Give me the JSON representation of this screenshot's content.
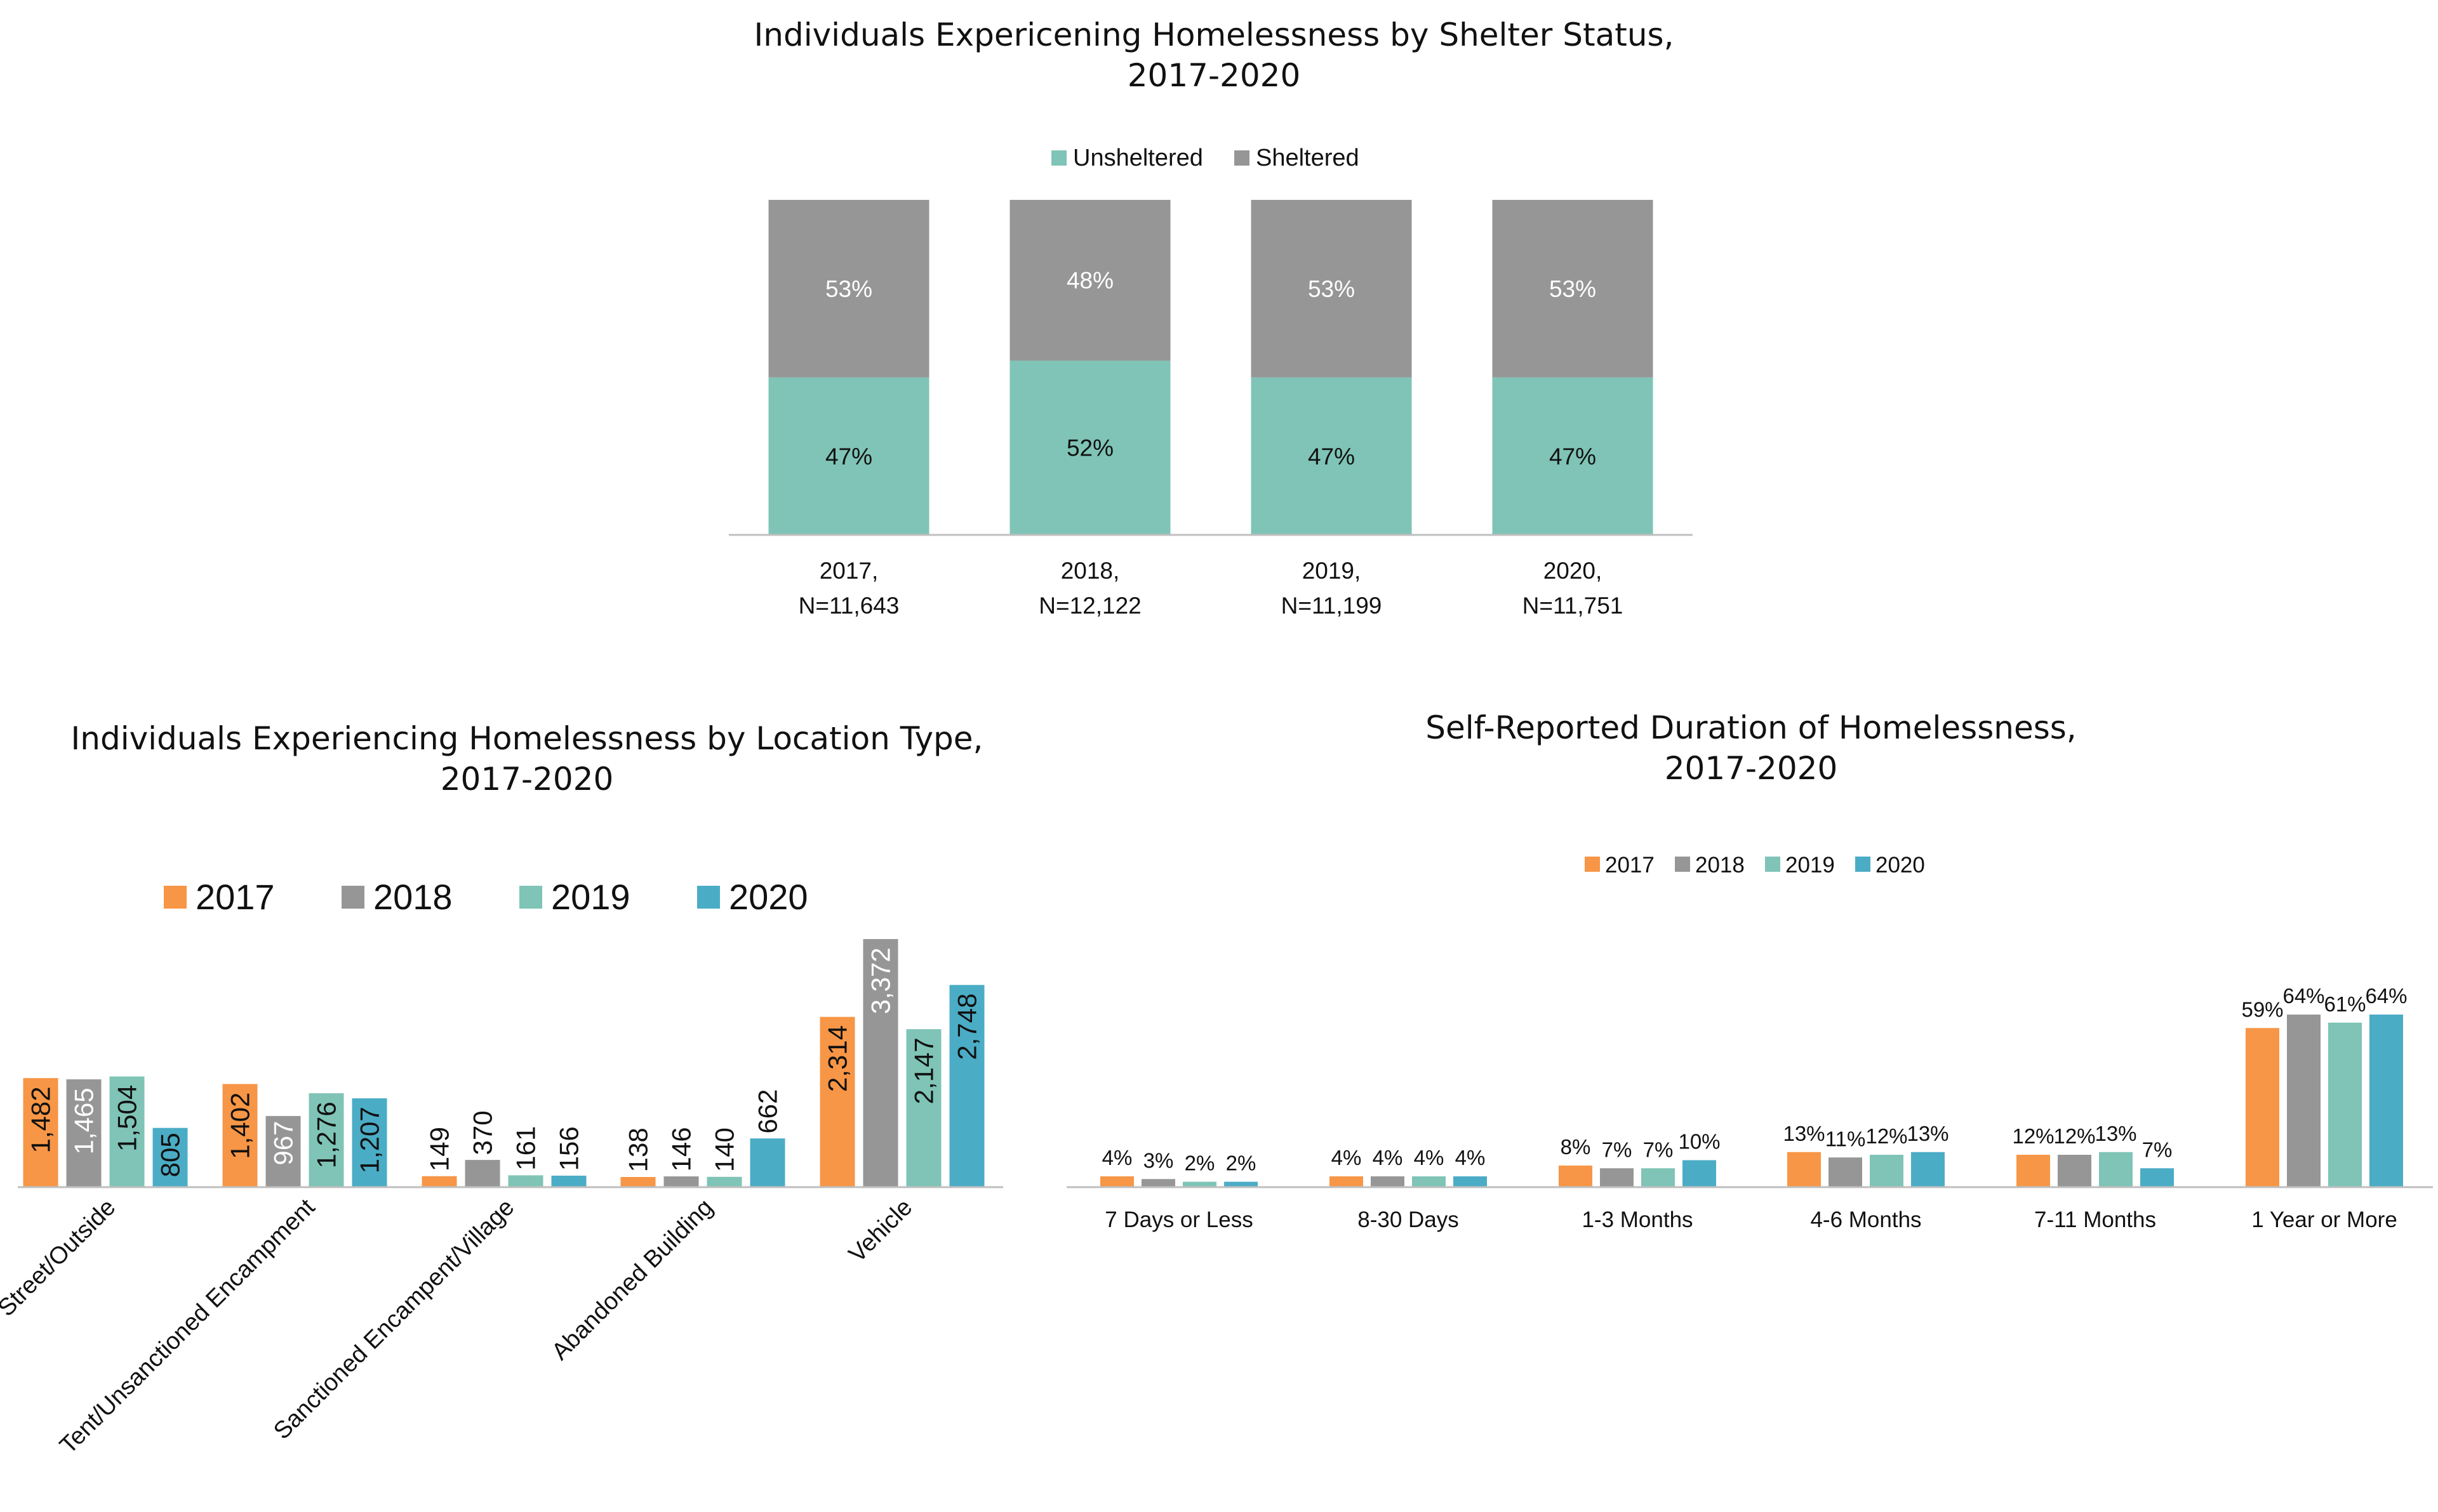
{
  "colors": {
    "c2017": "#F79646",
    "c2018": "#969696",
    "c2019": "#7FC4B6",
    "c2020": "#4BACC6",
    "unsheltered": "#7FC4B6",
    "sheltered": "#969696",
    "axis": "#BFBFBF"
  },
  "chart_data": [
    {
      "id": "shelter",
      "type": "bar",
      "stacked": true,
      "percent_stacked": true,
      "title_line1": "Individuals Expericening Homelessness by Shelter Status,",
      "title_line2": "2017-2020",
      "categories": [
        [
          "2017,",
          "N=11,643"
        ],
        [
          "2018,",
          "N=12,122"
        ],
        [
          "2019,",
          "N=11,199"
        ],
        [
          "2020,",
          "N=11,751"
        ]
      ],
      "series": [
        {
          "name": "Unsheltered",
          "values": [
            47,
            52,
            47,
            47
          ],
          "labels": [
            "47%",
            "52%",
            "47%",
            "47%"
          ]
        },
        {
          "name": "Sheltered",
          "values": [
            53,
            48,
            53,
            53
          ],
          "labels": [
            "53%",
            "48%",
            "53%",
            "53%"
          ]
        }
      ],
      "ylim": [
        0,
        100
      ],
      "legend": "top",
      "grid": false
    },
    {
      "id": "location",
      "type": "bar",
      "title_line1": "Individuals Experiencing Homelessness by Location Type,",
      "title_line2": "2017-2020",
      "categories": [
        "Street/Outside",
        "Tent/Unsanctioned Encampment",
        "Sanctioned Encampent/Village",
        "Abandoned Building",
        "Vehicle"
      ],
      "series": [
        {
          "name": "2017",
          "values": [
            1482,
            1402,
            149,
            138,
            2314
          ],
          "labels": [
            "1,482",
            "1,402",
            "149",
            "138",
            "2,314"
          ]
        },
        {
          "name": "2018",
          "values": [
            1465,
            967,
            370,
            146,
            3372
          ],
          "labels": [
            "1,465",
            "967",
            "370",
            "146",
            "3,372"
          ]
        },
        {
          "name": "2019",
          "values": [
            1504,
            1276,
            161,
            140,
            2147
          ],
          "labels": [
            "1,504",
            "1,276",
            "161",
            "140",
            "2,147"
          ]
        },
        {
          "name": "2020",
          "values": [
            805,
            1207,
            156,
            662,
            2748
          ],
          "labels": [
            "805",
            "1,207",
            "156",
            "662",
            "2,748"
          ]
        }
      ],
      "ylim": [
        0,
        3372
      ],
      "legend": "top",
      "grid": false
    },
    {
      "id": "duration",
      "type": "bar",
      "title_line1": "Self-Reported Duration of Homelessness,",
      "title_line2": "2017-2020",
      "categories": [
        "7 Days or Less",
        "8-30 Days",
        "1-3 Months",
        "4-6 Months",
        "7-11 Months",
        "1 Year or More"
      ],
      "series": [
        {
          "name": "2017",
          "values": [
            4,
            4,
            8,
            13,
            12,
            59
          ],
          "labels": [
            "4%",
            "4%",
            "8%",
            "13%",
            "12%",
            "59%"
          ]
        },
        {
          "name": "2018",
          "values": [
            3,
            4,
            7,
            11,
            12,
            64
          ],
          "labels": [
            "3%",
            "4%",
            "7%",
            "11%",
            "12%",
            "64%"
          ]
        },
        {
          "name": "2019",
          "values": [
            2,
            4,
            7,
            12,
            13,
            61
          ],
          "labels": [
            "2%",
            "4%",
            "7%",
            "12%",
            "13%",
            "61%"
          ]
        },
        {
          "name": "2020",
          "values": [
            2,
            4,
            10,
            13,
            7,
            64
          ],
          "labels": [
            "2%",
            "4%",
            "10%",
            "13%",
            "7%",
            "64%"
          ]
        }
      ],
      "ylim": [
        0,
        70
      ],
      "legend": "top",
      "grid": false
    }
  ]
}
